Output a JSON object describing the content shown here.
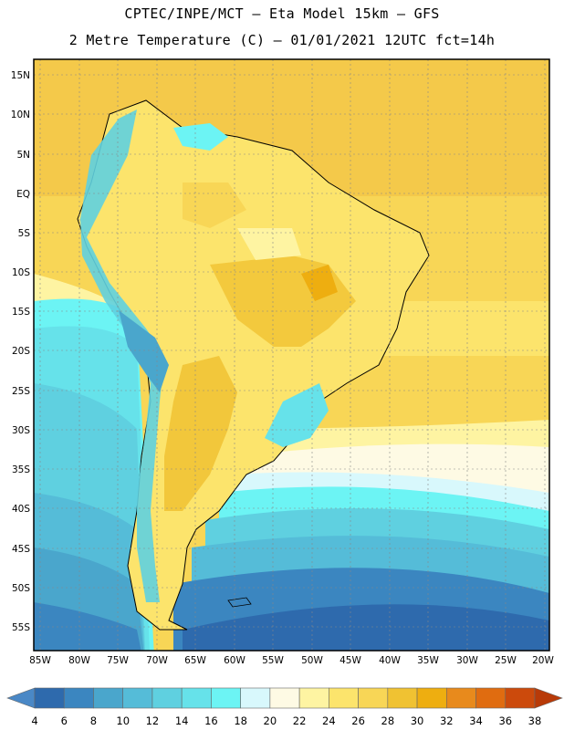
{
  "title_line1": "CPTEC/INPE/MCT –  Eta Model 15km – GFS",
  "title_line2": "2 Metre Temperature (C) – 01/01/2021 12UTC fct=14h",
  "map": {
    "lon_range": [
      -86,
      -19
    ],
    "lat_range": [
      -58,
      17
    ],
    "lat_ticks": [
      "15N",
      "10N",
      "5N",
      "EQ",
      "5S",
      "10S",
      "15S",
      "20S",
      "25S",
      "30S",
      "35S",
      "40S",
      "45S",
      "50S",
      "55S"
    ],
    "lon_ticks": [
      "85W",
      "80W",
      "75W",
      "70W",
      "65W",
      "60W",
      "55W",
      "50W",
      "45W",
      "40W",
      "35W",
      "30W",
      "25W",
      "20W"
    ],
    "gridlines": true
  },
  "colorbar": {
    "labels": [
      "4",
      "6",
      "8",
      "10",
      "12",
      "14",
      "16",
      "18",
      "20",
      "22",
      "24",
      "26",
      "28",
      "30",
      "32",
      "34",
      "36",
      "38"
    ],
    "colors": [
      "#4a88c6",
      "#2e6aad",
      "#3b86c0",
      "#4aa6cc",
      "#55bcd8",
      "#5fd0e0",
      "#66e2ea",
      "#6cf4f4",
      "#d8f8fc",
      "#fefae4",
      "#fef4a2",
      "#fce46c",
      "#f8d656",
      "#f0c232",
      "#eeae10",
      "#e88a1c",
      "#e06c10",
      "#cc4a0c",
      "#b83a08"
    ]
  }
}
